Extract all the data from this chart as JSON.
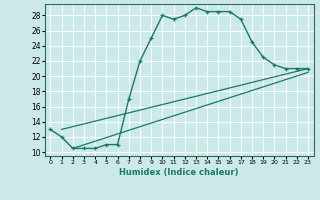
{
  "title": "",
  "xlabel": "Humidex (Indice chaleur)",
  "bg_color": "#cce9e9",
  "grid_color": "#ffffff",
  "line_color": "#1a7a66",
  "xlim": [
    -0.5,
    23.5
  ],
  "ylim": [
    9.5,
    29.5
  ],
  "xticks": [
    0,
    1,
    2,
    3,
    4,
    5,
    6,
    7,
    8,
    9,
    10,
    11,
    12,
    13,
    14,
    15,
    16,
    17,
    18,
    19,
    20,
    21,
    22,
    23
  ],
  "yticks": [
    10,
    12,
    14,
    16,
    18,
    20,
    22,
    24,
    26,
    28
  ],
  "curve1_x": [
    0,
    1,
    2,
    3,
    4,
    5,
    6,
    7,
    8,
    9,
    10,
    11,
    12,
    13,
    14,
    15,
    16,
    17,
    18,
    19,
    20,
    21,
    22,
    23
  ],
  "curve1_y": [
    13,
    12,
    10.5,
    10.5,
    10.5,
    11,
    11,
    17,
    22,
    25,
    28,
    27.5,
    28,
    29,
    28.5,
    28.5,
    28.5,
    27.5,
    24.5,
    22.5,
    21.5,
    21,
    21,
    21
  ],
  "line2_x": [
    1,
    23
  ],
  "line2_y": [
    13,
    21
  ],
  "line3_x": [
    2,
    23
  ],
  "line3_y": [
    10.5,
    20.5
  ]
}
